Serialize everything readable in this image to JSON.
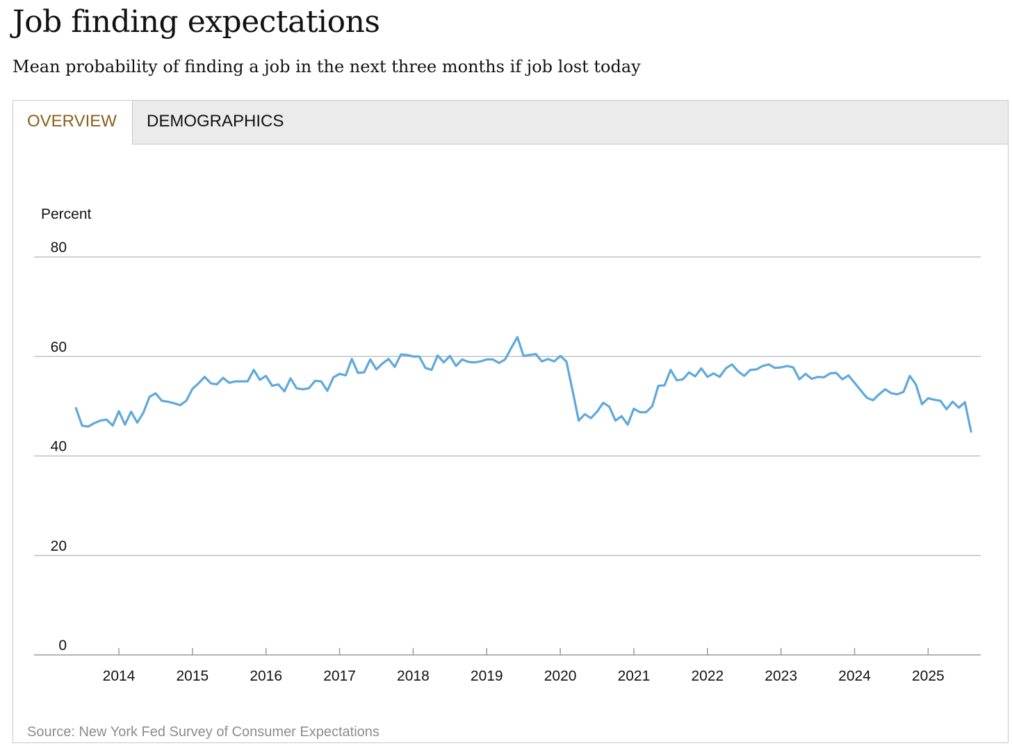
{
  "header": {
    "title": "Job finding expectations",
    "subtitle": "Mean probability of finding a job in the next three months if job lost today"
  },
  "tabs": [
    {
      "label": "OVERVIEW",
      "active": true
    },
    {
      "label": "DEMOGRAPHICS",
      "active": false
    }
  ],
  "colors": {
    "line": "#5fa8dc",
    "active_tab": "#8a5f1e",
    "grid": "#b4b4b4"
  },
  "source": "Source: New York Fed Survey of Consumer Expectations",
  "chart_data": {
    "type": "line",
    "ylabel": "Percent",
    "ylim": [
      0,
      80
    ],
    "yticks": [
      0,
      20,
      40,
      60,
      80
    ],
    "xticks": [
      "2014",
      "2015",
      "2016",
      "2017",
      "2018",
      "2019",
      "2020",
      "2021",
      "2022",
      "2023",
      "2024",
      "2025"
    ],
    "grid": true,
    "series": [
      {
        "start": "2013-06",
        "frequency": "monthly",
        "values": [
          49.6,
          46.1,
          45.9,
          46.6,
          47.1,
          47.3,
          46.1,
          49.0,
          46.3,
          48.9,
          46.7,
          48.7,
          51.9,
          52.6,
          51.1,
          50.9,
          50.6,
          50.2,
          51.1,
          53.5,
          54.6,
          55.9,
          54.6,
          54.4,
          55.7,
          54.7,
          55.0,
          55.0,
          55.0,
          57.3,
          55.3,
          56.1,
          54.1,
          54.4,
          53.0,
          55.6,
          53.6,
          53.4,
          53.6,
          55.1,
          55.0,
          53.1,
          55.8,
          56.5,
          56.2,
          59.5,
          56.7,
          56.8,
          59.4,
          57.4,
          58.6,
          59.5,
          57.9,
          60.4,
          60.3,
          60.0,
          60.0,
          57.7,
          57.3,
          60.2,
          58.8,
          60.1,
          58.1,
          59.4,
          58.9,
          58.8,
          59.0,
          59.4,
          59.4,
          58.7,
          59.4,
          61.7,
          63.9,
          60.1,
          60.3,
          60.5,
          59.0,
          59.5,
          59.0,
          60.1,
          59.0,
          53.2,
          47.1,
          48.4,
          47.6,
          48.9,
          50.7,
          49.9,
          47.1,
          48.0,
          46.3,
          49.5,
          48.8,
          48.8,
          50.0,
          54.1,
          54.2,
          57.3,
          55.2,
          55.4,
          56.8,
          56.0,
          57.6,
          55.9,
          56.6,
          55.9,
          57.6,
          58.4,
          57.0,
          56.1,
          57.3,
          57.4,
          58.1,
          58.4,
          57.7,
          57.8,
          58.1,
          57.8,
          55.4,
          56.5,
          55.5,
          55.9,
          55.8,
          56.6,
          56.7,
          55.4,
          56.2,
          54.7,
          53.2,
          51.7,
          51.2,
          52.4,
          53.4,
          52.6,
          52.4,
          52.9,
          56.1,
          54.4,
          50.4,
          51.6,
          51.3,
          51.1,
          49.4,
          50.9,
          49.7,
          50.8,
          44.9
        ]
      }
    ]
  }
}
